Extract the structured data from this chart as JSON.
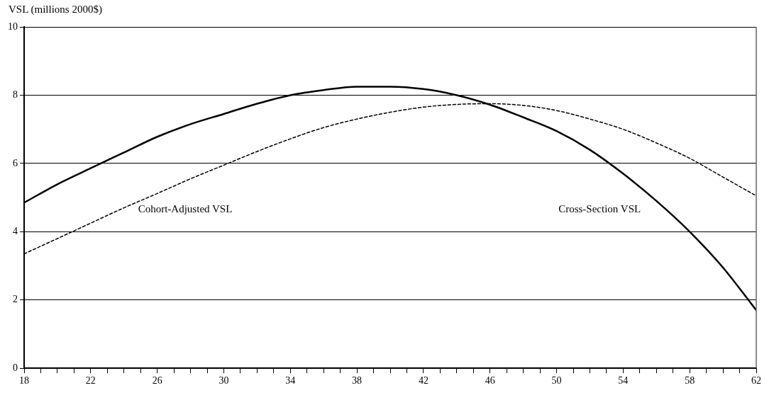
{
  "chart_data": {
    "type": "line",
    "ylabel": "VSL (millions 2000$)",
    "x": [
      18,
      20,
      22,
      24,
      26,
      28,
      30,
      32,
      34,
      36,
      38,
      40,
      42,
      44,
      46,
      48,
      50,
      52,
      54,
      56,
      58,
      60,
      62
    ],
    "series": [
      {
        "name": "Cross-Section VSL",
        "color": "#000000",
        "line_style": "solid",
        "values": [
          4.85,
          5.39,
          5.86,
          6.32,
          6.78,
          7.15,
          7.45,
          7.75,
          8.0,
          8.15,
          8.25,
          8.25,
          8.18,
          8.0,
          7.72,
          7.35,
          6.95,
          6.4,
          5.7,
          4.9,
          4.0,
          2.95,
          1.7
        ]
      },
      {
        "name": "Cohort-Adjusted VSL",
        "color": "#000000",
        "line_style": "dashed",
        "values": [
          3.35,
          3.8,
          4.25,
          4.7,
          5.12,
          5.55,
          5.95,
          6.35,
          6.72,
          7.05,
          7.3,
          7.5,
          7.65,
          7.73,
          7.75,
          7.7,
          7.55,
          7.3,
          7.0,
          6.6,
          6.15,
          5.6,
          5.05
        ]
      }
    ],
    "xlim": [
      18,
      62
    ],
    "xticks": [
      18,
      {
        "value": 19,
        "label": null
      },
      {
        "value": 20,
        "label": null
      },
      {
        "value": 21,
        "label": null
      },
      22,
      {
        "value": 23,
        "label": null
      },
      {
        "value": 24,
        "label": null
      },
      {
        "value": 25,
        "label": null
      },
      26,
      {
        "value": 27,
        "label": null
      },
      {
        "value": 28,
        "label": null
      },
      {
        "value": 29,
        "label": null
      },
      30,
      {
        "value": 31,
        "label": null
      },
      {
        "value": 32,
        "label": null
      },
      {
        "value": 33,
        "label": null
      },
      34,
      {
        "value": 35,
        "label": null
      },
      {
        "value": 36,
        "label": null
      },
      {
        "value": 37,
        "label": null
      },
      38,
      {
        "value": 39,
        "label": null
      },
      {
        "value": 40,
        "label": null
      },
      {
        "value": 41,
        "label": null
      },
      42,
      {
        "value": 43,
        "label": null
      },
      {
        "value": 44,
        "label": null
      },
      {
        "value": 45,
        "label": null
      },
      46,
      {
        "value": 47,
        "label": null
      },
      {
        "value": 48,
        "label": null
      },
      {
        "value": 49,
        "label": null
      },
      50,
      {
        "value": 51,
        "label": null
      },
      {
        "value": 52,
        "label": null
      },
      {
        "value": 53,
        "label": null
      },
      54,
      {
        "value": 55,
        "label": null
      },
      {
        "value": 56,
        "label": null
      },
      {
        "value": 57,
        "label": null
      },
      58,
      {
        "value": 59,
        "label": null
      },
      {
        "value": 60,
        "label": null
      },
      {
        "value": 61,
        "label": null
      },
      62
    ],
    "ylim": [
      0,
      10
    ],
    "yticks": [
      0,
      2,
      4,
      6,
      8,
      10
    ],
    "grid": "y",
    "legend": false,
    "marker": "none"
  }
}
